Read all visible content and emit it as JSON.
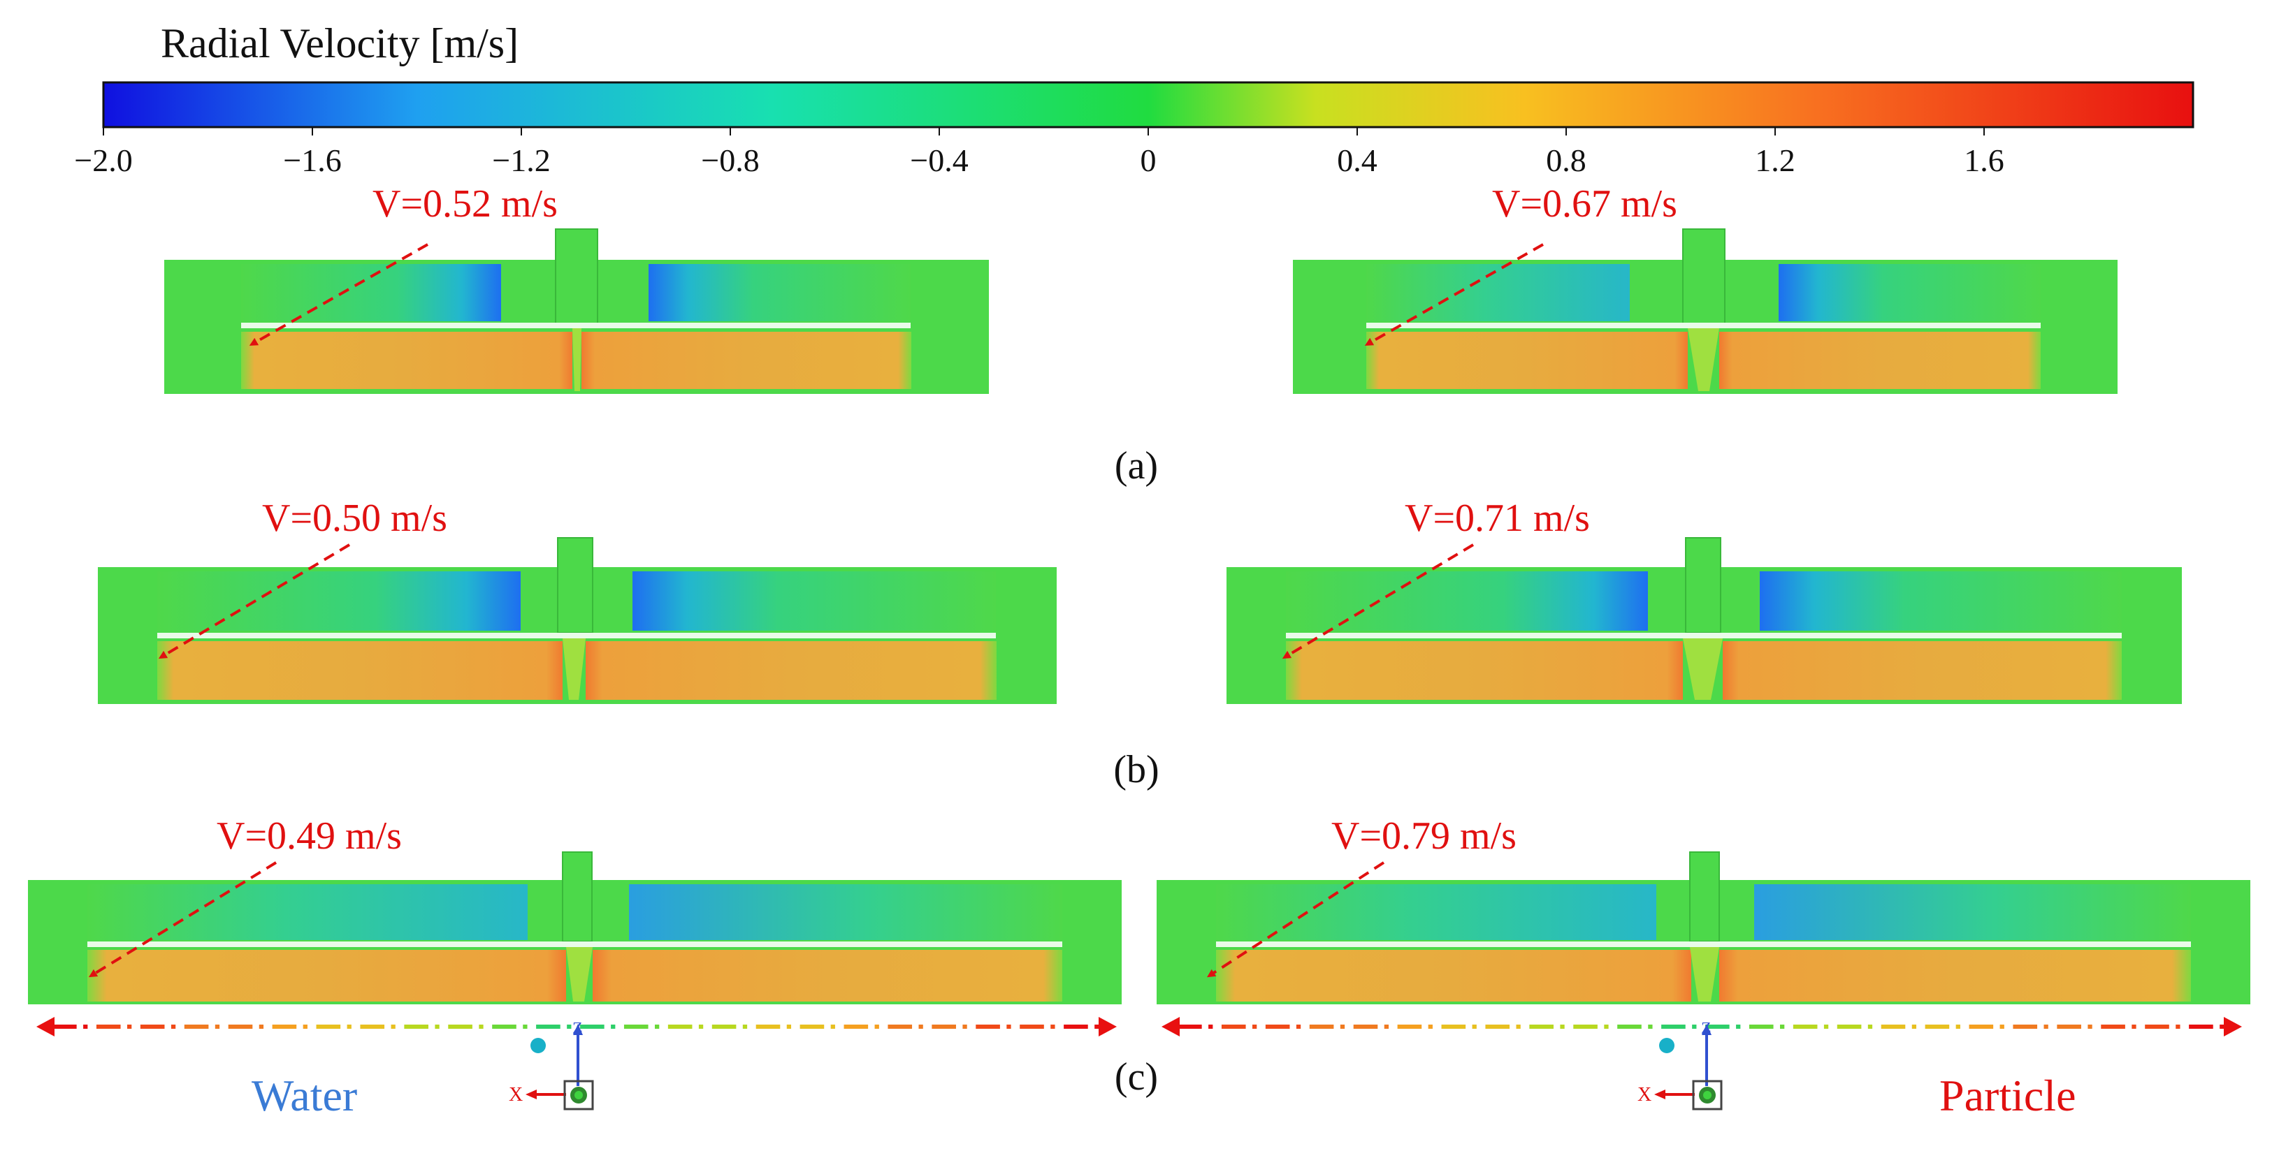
{
  "colorbar": {
    "title": "Radial Velocity [m/s]",
    "ticks": [
      {
        "label": "−2.0",
        "value": -2.0
      },
      {
        "label": "−1.6",
        "value": -1.6
      },
      {
        "label": "−1.2",
        "value": -1.2
      },
      {
        "label": "−0.8",
        "value": -0.8
      },
      {
        "label": "−0.4",
        "value": -0.4
      },
      {
        "label": "0",
        "value": 0.0
      },
      {
        "label": "0.4",
        "value": 0.4
      },
      {
        "label": "0.8",
        "value": 0.8
      },
      {
        "label": "1.2",
        "value": 1.2
      },
      {
        "label": "1.6",
        "value": 1.6
      }
    ],
    "range": [
      -2.0,
      2.0
    ],
    "colors": [
      "#1010e0",
      "#1fa0f0",
      "#18e0b0",
      "#20dc40",
      "#c8e020",
      "#f8c020",
      "#f87020",
      "#e81010"
    ]
  },
  "panels": {
    "a": {
      "caption": "(a)",
      "left_label": "V=0.52 m/s",
      "right_label": "V=0.67 m/s"
    },
    "b": {
      "caption": "(b)",
      "left_label": "V=0.50 m/s",
      "right_label": "V=0.71 m/s"
    },
    "c": {
      "caption": "(c)",
      "left_label": "V=0.49 m/s",
      "right_label": "V=0.79 m/s"
    }
  },
  "legend": {
    "water": "Water",
    "particle": "Particle"
  },
  "axis_triad": {
    "z": "Z",
    "x": "X"
  },
  "colors": {
    "annotation_red": "#e01010",
    "water_blue": "#3a7bd5",
    "field_green": "#4cd94a",
    "field_orange": "#f0a23c",
    "field_blue": "#2a8df0"
  }
}
